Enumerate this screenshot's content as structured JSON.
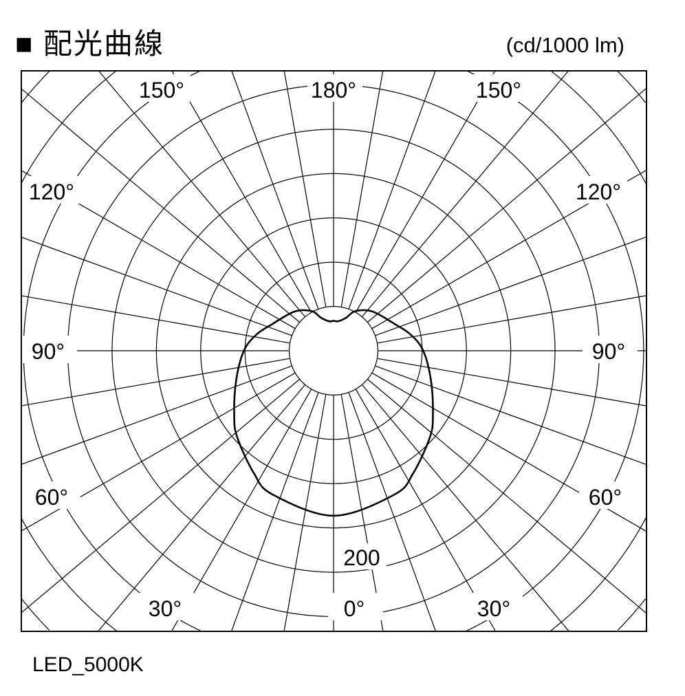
{
  "header": {
    "title": "■ 配光曲線",
    "unit": "(cd/1000 lm)"
  },
  "caption": "LED_5000K",
  "chart_data": {
    "type": "polar-line",
    "title": "配光曲線",
    "unit": "cd/1000 lm",
    "angle_labels": [
      "180°",
      "150°",
      "150°",
      "120°",
      "120°",
      "90°",
      "90°",
      "60°",
      "60°",
      "30°",
      "30°",
      "0°"
    ],
    "radial_label": "200",
    "radial_grid_step": 40,
    "angular_grid_step_deg": 10,
    "grid": true,
    "series": [
      {
        "name": "LED_5000K",
        "symmetric": true,
        "angles": [
          0,
          23,
          33,
          48,
          57,
          73,
          90,
          102,
          114,
          135,
          151,
          159,
          171,
          180
        ],
        "values": [
          149,
          141,
          132,
          117,
          107,
          92,
          81,
          71,
          60,
          50,
          41,
          32,
          27,
          27
        ]
      }
    ],
    "color": "#000000"
  }
}
